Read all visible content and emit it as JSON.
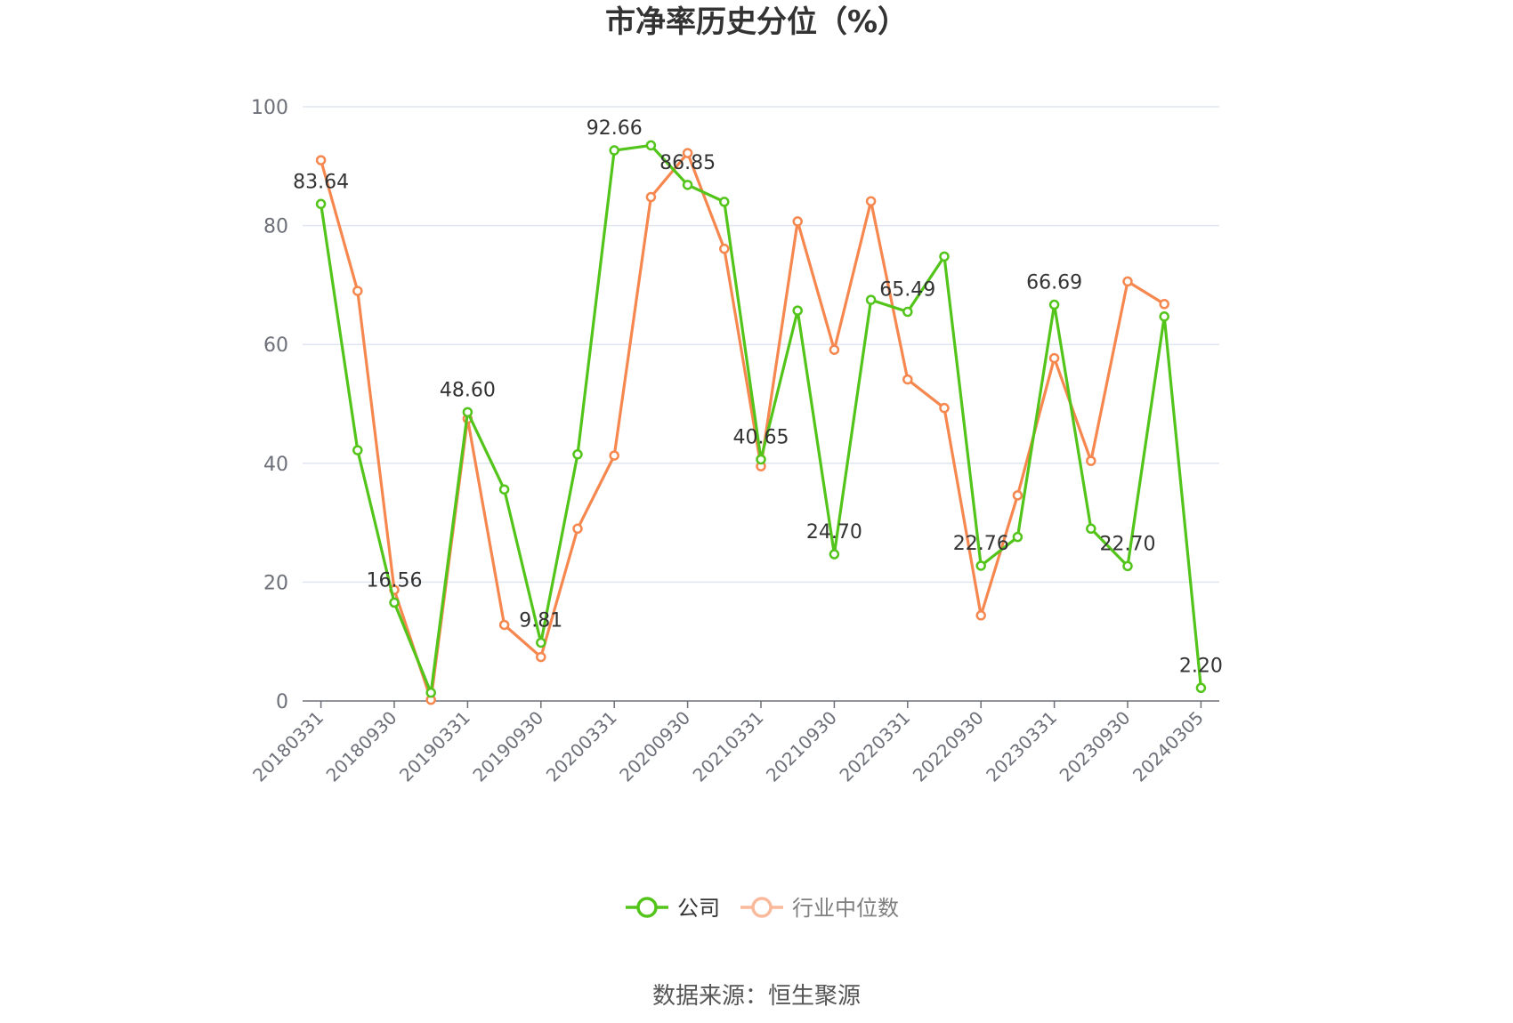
{
  "chart_data": {
    "type": "line",
    "title": "市净率历史分位（%）",
    "source": "数据来源：恒生聚源",
    "ylim": [
      0,
      100
    ],
    "y_ticks": [
      0,
      20,
      40,
      60,
      80,
      100
    ],
    "grid": true,
    "legend_position": "bottom",
    "x": [
      "20180331",
      "20180630",
      "20180930",
      "20181231",
      "20190331",
      "20190630",
      "20190930",
      "20191231",
      "20200331",
      "20200630",
      "20200930",
      "20201231",
      "20210331",
      "20210630",
      "20210930",
      "20211231",
      "20220331",
      "20220630",
      "20220930",
      "20221231",
      "20230331",
      "20230630",
      "20230930",
      "20231231",
      "20240305"
    ],
    "x_tick_labels": [
      "20180331",
      "20180930",
      "20190331",
      "20190930",
      "20200331",
      "20200930",
      "20210331",
      "20210930",
      "20220331",
      "20220930",
      "20230331",
      "20230930",
      "20240305"
    ],
    "series": [
      {
        "name": "公司",
        "color": "#52c41a",
        "values": [
          83.64,
          42.2,
          16.56,
          1.4,
          48.6,
          35.6,
          9.81,
          41.5,
          92.66,
          93.5,
          86.85,
          84.0,
          40.65,
          65.7,
          24.7,
          67.5,
          65.49,
          74.8,
          22.76,
          27.6,
          66.69,
          29.0,
          22.7,
          64.7,
          2.2
        ],
        "labels": [
          "83.64",
          null,
          "16.56",
          null,
          "48.60",
          null,
          "9.81",
          null,
          "92.66",
          null,
          "86.85",
          null,
          "40.65",
          null,
          "24.70",
          null,
          "65.49",
          null,
          "22.76",
          null,
          "66.69",
          null,
          "22.70",
          null,
          "2.20"
        ]
      },
      {
        "name": "行业中位数",
        "color": "#f5874f",
        "values": [
          91.0,
          69.0,
          18.7,
          0.2,
          47.5,
          12.8,
          7.4,
          29.0,
          41.3,
          84.8,
          92.2,
          76.1,
          39.5,
          80.7,
          59.1,
          84.1,
          54.1,
          49.3,
          14.4,
          34.6,
          57.7,
          40.4,
          70.6,
          66.8,
          null
        ]
      }
    ]
  }
}
